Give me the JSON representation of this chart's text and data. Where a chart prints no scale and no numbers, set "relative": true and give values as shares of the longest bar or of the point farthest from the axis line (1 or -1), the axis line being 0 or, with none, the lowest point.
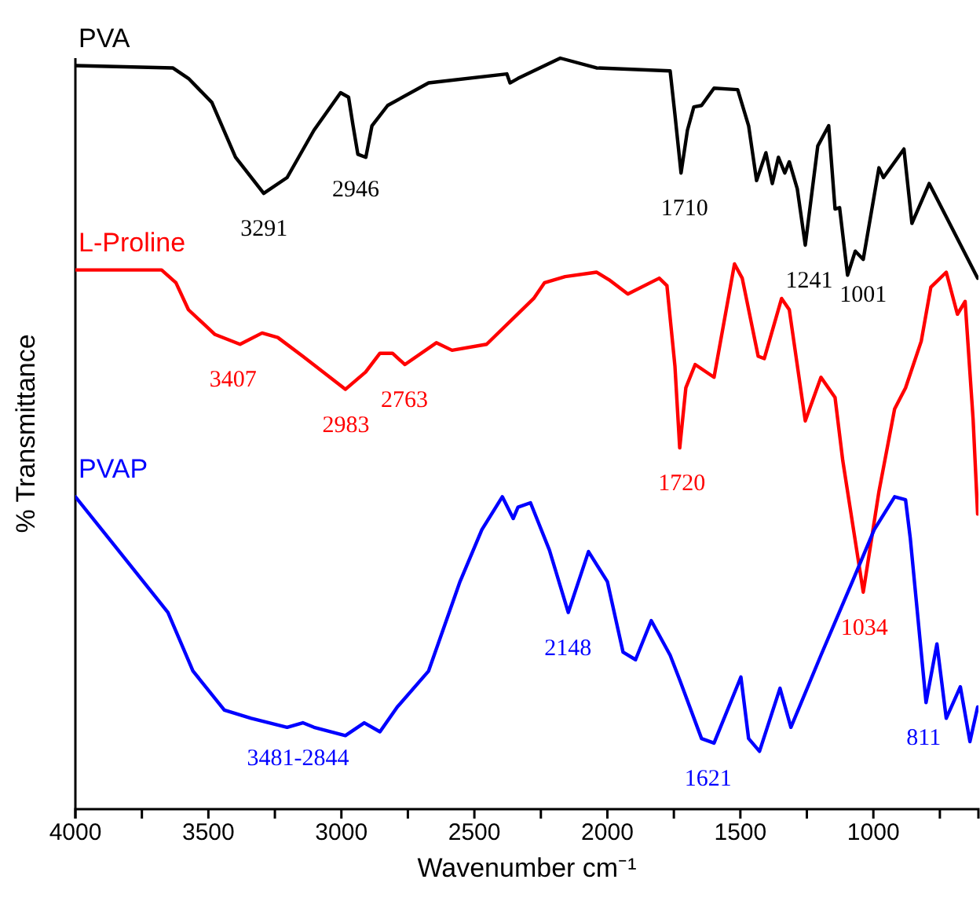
{
  "chart_data": {
    "type": "line",
    "relative": true,
    "xlabel": "Wavenumber  cm⁻¹",
    "ylabel": "% Transmittance",
    "xlim": [
      4000,
      605
    ],
    "xticks": [
      4000,
      {
        "value": 3750,
        "label": null
      },
      3500,
      {
        "value": 3250,
        "label": null
      },
      3000,
      {
        "value": 2750,
        "label": null
      },
      2500,
      {
        "value": 2250,
        "label": null
      },
      2000,
      {
        "value": 1750,
        "label": null
      },
      1500,
      {
        "value": 1250,
        "label": null
      },
      1000,
      {
        "value": 750,
        "label": null
      }
    ],
    "tick_labels": "x",
    "grid": false,
    "line_style": "solid",
    "series": [
      {
        "name": "PVA",
        "color": "#000000",
        "x": [
          4000,
          3634,
          3575,
          3487,
          3398,
          3292,
          3204,
          3103,
          3003,
          2973,
          2956,
          2938,
          2908,
          2885,
          2826,
          2672,
          2378,
          2366,
          2336,
          2177,
          2041,
          1764,
          1746,
          1723,
          1699,
          1675,
          1646,
          1599,
          1510,
          1469,
          1439,
          1404,
          1380,
          1357,
          1333,
          1316,
          1286,
          1256,
          1209,
          1168,
          1144,
          1127,
          1097,
          1068,
          1038,
          979,
          962,
          885,
          855,
          790,
          608
        ],
        "values": [
          0.99,
          0.987,
          0.973,
          0.941,
          0.868,
          0.82,
          0.841,
          0.904,
          0.954,
          0.948,
          0.91,
          0.872,
          0.868,
          0.91,
          0.937,
          0.967,
          0.979,
          0.967,
          0.973,
          1,
          0.987,
          0.983,
          0.925,
          0.847,
          0.904,
          0.935,
          0.937,
          0.96,
          0.958,
          0.91,
          0.837,
          0.874,
          0.833,
          0.868,
          0.847,
          0.862,
          0.826,
          0.751,
          0.883,
          0.91,
          0.799,
          0.801,
          0.711,
          0.743,
          0.732,
          0.854,
          0.841,
          0.879,
          0.78,
          0.833,
          0.707
        ]
      },
      {
        "name": "L-Proline",
        "color": "#ff0000",
        "x": [
          4000,
          3676,
          3622,
          3575,
          3475,
          3381,
          3298,
          3239,
          3145,
          2985,
          2909,
          2855,
          2808,
          2761,
          2643,
          2584,
          2454,
          2277,
          2236,
          2159,
          2041,
          1994,
          1923,
          1805,
          1776,
          1746,
          1728,
          1705,
          1670,
          1599,
          1522,
          1493,
          1433,
          1410,
          1345,
          1316,
          1256,
          1197,
          1144,
          1115,
          1038,
          979,
          920,
          879,
          820,
          784,
          726,
          684,
          655,
          625,
          608
        ],
        "values": [
          0.718,
          0.718,
          0.701,
          0.665,
          0.632,
          0.619,
          0.634,
          0.628,
          0.603,
          0.559,
          0.582,
          0.607,
          0.607,
          0.592,
          0.621,
          0.611,
          0.619,
          0.68,
          0.701,
          0.709,
          0.715,
          0.705,
          0.686,
          0.707,
          0.697,
          0.59,
          0.481,
          0.561,
          0.592,
          0.575,
          0.726,
          0.707,
          0.603,
          0.6,
          0.68,
          0.665,
          0.517,
          0.575,
          0.548,
          0.464,
          0.289,
          0.423,
          0.533,
          0.561,
          0.623,
          0.695,
          0.715,
          0.659,
          0.676,
          0.519,
          0.393
        ]
      },
      {
        "name": "PVAP",
        "color": "#0000ff",
        "x": [
          4000,
          3853,
          3652,
          3558,
          3440,
          3339,
          3204,
          3145,
          3103,
          2985,
          2914,
          2855,
          2790,
          2672,
          2554,
          2472,
          2395,
          2354,
          2336,
          2289,
          2218,
          2147,
          2071,
          2000,
          1941,
          1894,
          1835,
          1764,
          1728,
          1646,
          1599,
          1498,
          1469,
          1428,
          1351,
          1310,
          1197,
          1079,
          997,
          920,
          879,
          861,
          802,
          761,
          726,
          673,
          637,
          608
        ],
        "values": [
          0.416,
          0.351,
          0.262,
          0.184,
          0.132,
          0.121,
          0.109,
          0.115,
          0.109,
          0.098,
          0.115,
          0.103,
          0.136,
          0.184,
          0.303,
          0.372,
          0.416,
          0.387,
          0.402,
          0.408,
          0.345,
          0.262,
          0.343,
          0.303,
          0.209,
          0.199,
          0.251,
          0.205,
          0.172,
          0.094,
          0.088,
          0.176,
          0.094,
          0.077,
          0.161,
          0.109,
          0.205,
          0.303,
          0.372,
          0.416,
          0.412,
          0.36,
          0.142,
          0.22,
          0.121,
          0.163,
          0.09,
          0.136
        ]
      }
    ],
    "annotations": [
      {
        "text": "3291",
        "x": 3291,
        "y": 0.82
      },
      {
        "text": "2946",
        "x": 2946,
        "y": 0.872
      },
      {
        "text": "1710",
        "x": 1710,
        "y": 0.847
      },
      {
        "text": "1241",
        "x": 1241,
        "y": 0.751
      },
      {
        "text": "1001",
        "x": 1038,
        "y": 0.732
      },
      {
        "text": "3407",
        "x": 3407,
        "y": 0.619
      },
      {
        "text": "2983",
        "x": 2983,
        "y": 0.559
      },
      {
        "text": "2763",
        "x": 2763,
        "y": 0.592
      },
      {
        "text": "1720",
        "x": 1720,
        "y": 0.481
      },
      {
        "text": "1034",
        "x": 1034,
        "y": 0.289
      },
      {
        "text": "3481-2844",
        "x": 3163,
        "y": 0.115
      },
      {
        "text": "2148",
        "x": 2148,
        "y": 0.262
      },
      {
        "text": "1621",
        "x": 1621,
        "y": 0.088
      },
      {
        "text": "811",
        "x": 811,
        "y": 0.142
      }
    ]
  }
}
